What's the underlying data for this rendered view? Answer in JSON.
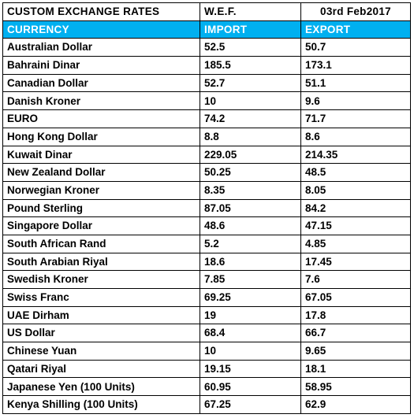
{
  "table": {
    "title": "CUSTOM EXCHANGE RATES",
    "wef_label": "W.E.F.",
    "date": "03rd Feb2017",
    "header_color": "#00b0f0",
    "columns": [
      "CURRENCY",
      "IMPORT",
      "EXPORT"
    ],
    "rows": [
      {
        "currency": "Australian Dollar",
        "import": "52.5",
        "export": "50.7"
      },
      {
        "currency": "Bahraini Dinar",
        "import": "185.5",
        "export": "173.1"
      },
      {
        "currency": "Canadian Dollar",
        "import": "52.7",
        "export": "51.1"
      },
      {
        "currency": "Danish Kroner",
        "import": "10",
        "export": "9.6"
      },
      {
        "currency": "EURO",
        "import": "74.2",
        "export": "71.7"
      },
      {
        "currency": "Hong Kong Dollar",
        "import": "8.8",
        "export": "8.6"
      },
      {
        "currency": "Kuwait Dinar",
        "import": "229.05",
        "export": "214.35"
      },
      {
        "currency": "New Zealand Dollar",
        "import": "50.25",
        "export": "48.5"
      },
      {
        "currency": "Norwegian Kroner",
        "import": "8.35",
        "export": "8.05"
      },
      {
        "currency": "Pound Sterling",
        "import": "87.05",
        "export": "84.2"
      },
      {
        "currency": "Singapore Dollar",
        "import": "48.6",
        "export": "47.15"
      },
      {
        "currency": "South African Rand",
        "import": "5.2",
        "export": "4.85"
      },
      {
        "currency": "South Arabian Riyal",
        "import": "18.6",
        "export": "17.45"
      },
      {
        "currency": "Swedish Kroner",
        "import": "7.85",
        "export": "7.6"
      },
      {
        "currency": "Swiss Franc",
        "import": "69.25",
        "export": "67.05"
      },
      {
        "currency": "UAE Dirham",
        "import": "19",
        "export": "17.8"
      },
      {
        "currency": "US Dollar",
        "import": "68.4",
        "export": "66.7"
      },
      {
        "currency": "Chinese Yuan",
        "import": "10",
        "export": "9.65"
      },
      {
        "currency": "Qatari Riyal",
        "import": "19.15",
        "export": "18.1"
      },
      {
        "currency": "Japanese Yen (100 Units)",
        "import": "60.95",
        "export": "58.95"
      },
      {
        "currency": "Kenya Shilling (100 Units)",
        "import": "67.25",
        "export": "62.9"
      }
    ]
  }
}
